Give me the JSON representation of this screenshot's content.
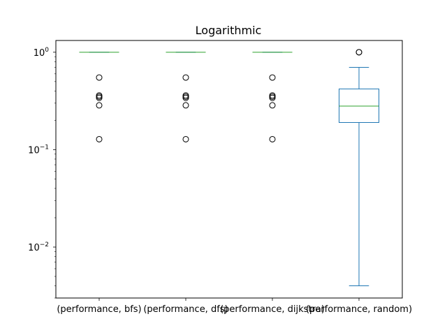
{
  "chart_data": {
    "type": "box",
    "title": "Logarithmic",
    "yscale": "log",
    "ylim": [
      0.003,
      1.32
    ],
    "yticks": [
      {
        "value": 0.01,
        "base": "10",
        "exp": "−2"
      },
      {
        "value": 0.1,
        "base": "10",
        "exp": "−1"
      },
      {
        "value": 1,
        "base": "10",
        "exp": "0"
      }
    ],
    "categories": [
      "(performance, bfs)",
      "(performance, dfs)",
      "(performance, dijkstra)",
      "(performance, random)"
    ],
    "boxes": [
      {
        "name": "(performance, bfs)",
        "whislo": 1.0,
        "q1": 1.0,
        "med": 1.0,
        "q3": 1.0,
        "whishi": 1.0,
        "fliers": [
          0.55,
          0.36,
          0.35,
          0.34,
          0.285,
          0.128
        ]
      },
      {
        "name": "(performance, dfs)",
        "whislo": 1.0,
        "q1": 1.0,
        "med": 1.0,
        "q3": 1.0,
        "whishi": 1.0,
        "fliers": [
          0.55,
          0.36,
          0.35,
          0.34,
          0.285,
          0.128
        ]
      },
      {
        "name": "(performance, dijkstra)",
        "whislo": 1.0,
        "q1": 1.0,
        "med": 1.0,
        "q3": 1.0,
        "whishi": 1.0,
        "fliers": [
          0.55,
          0.36,
          0.35,
          0.34,
          0.285,
          0.128
        ]
      },
      {
        "name": "(performance, random)",
        "whislo": 0.004,
        "q1": 0.19,
        "med": 0.28,
        "q3": 0.42,
        "whishi": 0.7,
        "fliers": [
          1.0,
          1.0
        ]
      }
    ],
    "colors": {
      "box": "#1f77b4",
      "median": "#2ca02c",
      "flier": "#000000"
    }
  }
}
